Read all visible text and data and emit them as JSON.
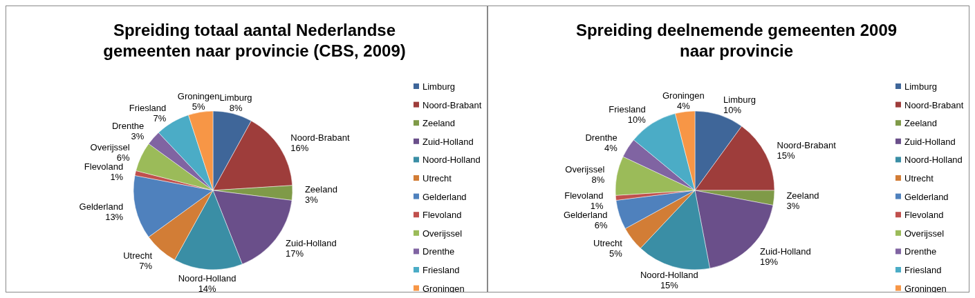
{
  "chart_data": [
    {
      "type": "pie",
      "title": "Spreiding totaal aantal Nederlandse gemeenten naar provincie (CBS, 2009)",
      "categories": [
        "Limburg",
        "Noord-Brabant",
        "Zeeland",
        "Zuid-Holland",
        "Noord-Holland",
        "Utrecht",
        "Gelderland",
        "Flevoland",
        "Overijssel",
        "Drenthe",
        "Friesland",
        "Groningen"
      ],
      "values": [
        8,
        16,
        3,
        17,
        14,
        7,
        13,
        1,
        6,
        3,
        7,
        5
      ],
      "value_labels": [
        "8%",
        "16%",
        "3%",
        "17%",
        "14%",
        "7%",
        "13%",
        "1%",
        "6%",
        "3%",
        "7%",
        "5%"
      ],
      "colors": [
        "#3f6699",
        "#9e3d3b",
        "#7f9a48",
        "#6a4f8a",
        "#3a8ea5",
        "#d27d36",
        "#4f81bd",
        "#c0504d",
        "#9bbb59",
        "#8064a2",
        "#4bacc6",
        "#f79646"
      ],
      "legend": "right"
    },
    {
      "type": "pie",
      "title": "Spreiding deelnemende gemeenten 2009 naar provincie",
      "categories": [
        "Limburg",
        "Noord-Brabant",
        "Zeeland",
        "Zuid-Holland",
        "Noord-Holland",
        "Utrecht",
        "Gelderland",
        "Flevoland",
        "Overijssel",
        "Drenthe",
        "Friesland",
        "Groningen"
      ],
      "values": [
        10,
        15,
        3,
        19,
        15,
        5,
        6,
        1,
        8,
        4,
        10,
        4
      ],
      "value_labels": [
        "10%",
        "15%",
        "3%",
        "19%",
        "15%",
        "5%",
        "6%",
        "1%",
        "8%",
        "4%",
        "10%",
        "4%"
      ],
      "colors": [
        "#3f6699",
        "#9e3d3b",
        "#7f9a48",
        "#6a4f8a",
        "#3a8ea5",
        "#d27d36",
        "#4f81bd",
        "#c0504d",
        "#9bbb59",
        "#8064a2",
        "#4bacc6",
        "#f79646"
      ],
      "legend": "right"
    }
  ]
}
